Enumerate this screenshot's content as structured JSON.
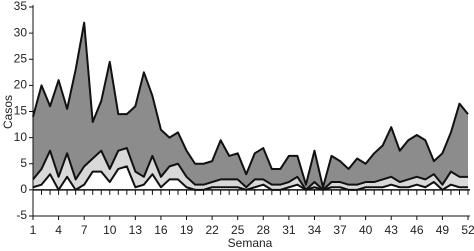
{
  "chart_data": {
    "type": "area",
    "x_label": "Semana",
    "y_label": "Casos",
    "x": [
      1,
      2,
      3,
      4,
      5,
      6,
      7,
      8,
      9,
      10,
      11,
      12,
      13,
      14,
      15,
      16,
      17,
      18,
      19,
      20,
      21,
      22,
      23,
      24,
      25,
      26,
      27,
      28,
      29,
      30,
      31,
      32,
      33,
      34,
      35,
      36,
      37,
      38,
      39,
      40,
      41,
      42,
      43,
      44,
      45,
      46,
      47,
      48,
      49,
      50,
      51,
      52
    ],
    "xlim": [
      1,
      52
    ],
    "xticks": [
      1,
      4,
      7,
      10,
      13,
      16,
      19,
      22,
      25,
      28,
      31,
      34,
      37,
      40,
      43,
      46,
      49,
      52
    ],
    "ylim": [
      -5,
      35
    ],
    "yticks": [
      -5,
      0,
      5,
      10,
      15,
      20,
      25,
      30,
      35
    ],
    "series": [
      {
        "color": "#8c8c8c",
        "values": [
          14,
          20,
          16,
          21,
          15.5,
          23,
          32,
          13,
          17,
          24.5,
          14.5,
          14.5,
          16,
          22.5,
          18,
          11.5,
          10,
          11,
          7.5,
          5,
          5,
          5.5,
          9.5,
          6.5,
          7,
          3,
          7,
          8,
          4,
          4,
          6.5,
          6.5,
          1,
          7.5,
          0.5,
          6.5,
          5.5,
          4,
          6,
          5,
          7,
          8.5,
          12,
          7.5,
          9.5,
          10.5,
          9.5,
          5.5,
          7,
          11,
          16.5,
          14.5
        ]
      },
      {
        "color": "#d9d9d9",
        "values": [
          2,
          4,
          7.5,
          2.5,
          7,
          2,
          4.5,
          6,
          7.5,
          4,
          7.5,
          8,
          3.5,
          2.5,
          6.5,
          2.5,
          4.5,
          5,
          2.5,
          1,
          1,
          1.5,
          2,
          2,
          2,
          0.5,
          2,
          2,
          1,
          1,
          1.5,
          2.5,
          0,
          1.5,
          0,
          1.5,
          1.5,
          1,
          1,
          1.5,
          1.5,
          2,
          2.5,
          1.5,
          2,
          2.5,
          2,
          3,
          1,
          3.5,
          2.5,
          2.5
        ]
      },
      {
        "color": "#ffffff",
        "values": [
          0.5,
          1,
          3,
          0,
          2.5,
          0,
          1,
          3.5,
          3.5,
          1.5,
          4,
          4.5,
          0.5,
          1,
          3,
          0.5,
          2,
          2,
          0.5,
          0,
          0,
          0.5,
          0.5,
          0.5,
          0.5,
          0,
          0.5,
          1,
          0,
          0,
          0.5,
          1,
          0,
          0.5,
          0,
          0.5,
          0.5,
          0,
          0,
          0.5,
          0.5,
          0.5,
          1,
          0.5,
          0.5,
          1,
          0.5,
          1.5,
          0,
          1,
          0.5,
          0.5
        ]
      }
    ]
  }
}
